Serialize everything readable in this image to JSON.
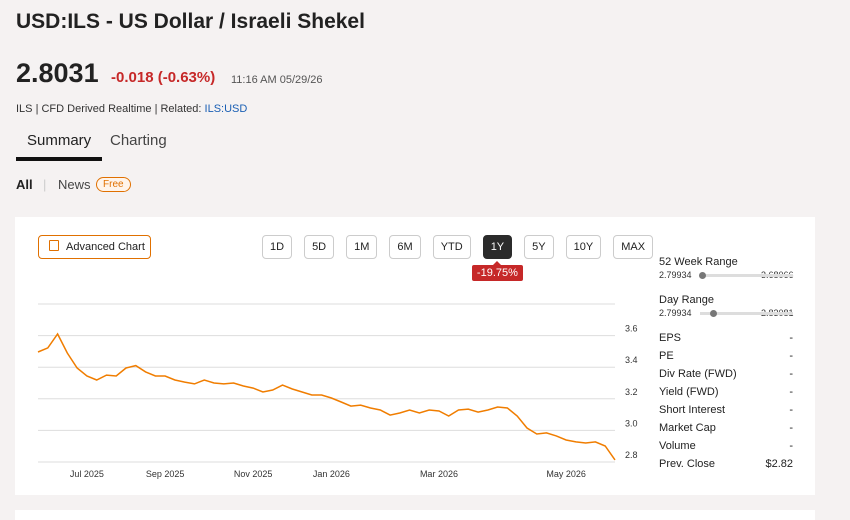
{
  "header": {
    "title": "USD:ILS - US Dollar / Israeli Shekel",
    "price": 2.8031,
    "change": "-0.018 (-0.63%)",
    "time": "11:16 AM 05/29/26",
    "meta": "ILS | CFD Derived Realtime | Related:",
    "related": "ILS:USD"
  },
  "tabs": [
    "Summary",
    "Charting"
  ],
  "subtabs": [
    "All",
    "News"
  ],
  "badge": "Free",
  "toolbar": {
    "advanced": "Advanced Chart",
    "ranges": [
      "1D",
      "5D",
      "1M",
      "6M",
      "YTD",
      "1Y",
      "5Y",
      "10Y",
      "MAX"
    ],
    "active_range": "1Y",
    "range_change": "-19.75%"
  },
  "chart_data": {
    "type": "line",
    "color": "#f07d00",
    "categories": [
      null,
      null,
      null,
      null,
      null,
      "Jul 2025",
      null,
      null,
      null,
      null,
      null,
      null,
      null,
      "Sep 2025",
      null,
      null,
      null,
      null,
      null,
      null,
      null,
      null,
      "Nov 2025",
      null,
      null,
      null,
      null,
      null,
      null,
      null,
      "Jan 2026",
      null,
      null,
      null,
      null,
      null,
      null,
      null,
      null,
      null,
      null,
      "Mar 2026",
      null,
      null,
      null,
      null,
      null,
      null,
      null,
      null,
      null,
      null,
      null,
      null,
      "May 2026",
      null,
      null,
      null,
      null,
      null
    ],
    "values": [
      3.496,
      3.522,
      3.61,
      3.49,
      3.395,
      3.344,
      3.319,
      3.35,
      3.344,
      3.395,
      3.41,
      3.37,
      3.344,
      3.344,
      3.319,
      3.306,
      3.294,
      3.319,
      3.3,
      3.294,
      3.3,
      3.281,
      3.268,
      3.243,
      3.256,
      3.287,
      3.262,
      3.243,
      3.224,
      3.224,
      3.205,
      3.18,
      3.154,
      3.16,
      3.142,
      3.129,
      3.097,
      3.11,
      3.129,
      3.11,
      3.129,
      3.123,
      3.091,
      3.129,
      3.135,
      3.116,
      3.129,
      3.148,
      3.142,
      3.091,
      3.015,
      2.977,
      2.984,
      2.965,
      2.939,
      2.927,
      2.92,
      2.927,
      2.901,
      2.813
    ],
    "ylim": [
      2.8,
      3.8
    ],
    "yticks": [
      2.8,
      {
        "value": 3,
        "label": "3.0"
      },
      3.2,
      3.4,
      3.6
    ],
    "grid": true
  },
  "range_stats": [
    {
      "label": "52 Week Range",
      "low": 2.79934,
      "high": 3.68066
    },
    {
      "label": "Day Range",
      "low": 2.79934,
      "high": 2.83081
    }
  ],
  "stats": [
    {
      "label": "EPS",
      "value": "-"
    },
    {
      "label": "PE",
      "value": "-"
    },
    {
      "label": "Div Rate (FWD)",
      "value": "-"
    },
    {
      "label": "Yield (FWD)",
      "value": "-"
    },
    {
      "label": "Short Interest",
      "value": "-"
    },
    {
      "label": "Market Cap",
      "value": "-"
    },
    {
      "label": "Volume",
      "value": "-"
    },
    {
      "label": "Prev. Close",
      "value": "$2.82"
    }
  ]
}
